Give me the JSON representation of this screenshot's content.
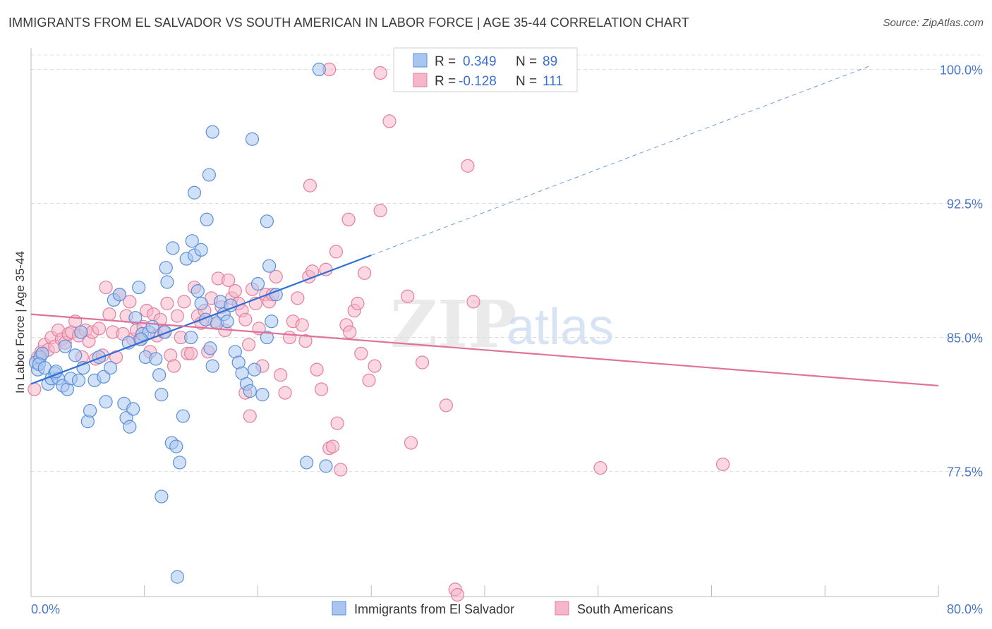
{
  "header": {
    "title": "IMMIGRANTS FROM EL SALVADOR VS SOUTH AMERICAN IN LABOR FORCE | AGE 35-44 CORRELATION CHART",
    "source": "Source: ZipAtlas.com"
  },
  "legend": {
    "row1": {
      "r_label": "R =",
      "r_value": "0.349",
      "n_label": "N =",
      "n_value": "89"
    },
    "row2": {
      "r_label": "R =",
      "r_value": "-0.128",
      "n_label": "N =",
      "n_value": "111"
    }
  },
  "bottom_legend": {
    "series1": "Immigrants from El Salvador",
    "series2": "South Americans"
  },
  "watermark": {
    "zip": "ZIP",
    "atlas": "atlas"
  },
  "colors": {
    "blue_fill": "#a9c6f0",
    "blue_stroke": "#5b8fd8",
    "blue_line": "#2f6fd6",
    "pink_fill": "#f5b6c9",
    "pink_stroke": "#e47fa0",
    "pink_line": "#e0729a",
    "tick_text": "#4a78c4",
    "grid": "#dcdcdc"
  },
  "chart_data": {
    "type": "scatter",
    "title": "IMMIGRANTS FROM EL SALVADOR VS SOUTH AMERICAN IN LABOR FORCE | AGE 35-44 CORRELATION CHART",
    "xlabel": "",
    "ylabel": "In Labor Force | Age 35-44",
    "xlim": [
      0,
      80
    ],
    "ylim": [
      70.5,
      101.2
    ],
    "x_tick_labels": [
      "0.0%",
      "80.0%"
    ],
    "y_ticks": [
      77.5,
      85.0,
      92.5,
      100.0
    ],
    "y_tick_labels": [
      "77.5%",
      "85.0%",
      "92.5%",
      "100.0%"
    ],
    "grid": "horizontal dashed",
    "legend_position": "top-center",
    "series": [
      {
        "name": "Immigrants from El Salvador",
        "color": "#5b8fd8",
        "stats": {
          "R": 0.349,
          "N": 89
        },
        "trend": {
          "x": [
            0,
            30
          ],
          "y": [
            82.4,
            89.6
          ],
          "extended_x": [
            30,
            74
          ],
          "extended_y": [
            89.6,
            100.2
          ]
        },
        "points": [
          [
            0.4,
            83.6
          ],
          [
            0.6,
            83.2
          ],
          [
            0.8,
            83.9
          ],
          [
            1.0,
            84.1
          ],
          [
            0.7,
            83.5
          ],
          [
            1.2,
            83.3
          ],
          [
            1.5,
            82.4
          ],
          [
            1.8,
            82.7
          ],
          [
            2.1,
            83.0
          ],
          [
            2.4,
            82.7
          ],
          [
            2.8,
            82.3
          ],
          [
            3.2,
            82.1
          ],
          [
            3.5,
            82.7
          ],
          [
            3.9,
            84.0
          ],
          [
            4.2,
            82.6
          ],
          [
            4.6,
            83.3
          ],
          [
            5.0,
            80.3
          ],
          [
            5.2,
            80.9
          ],
          [
            5.6,
            82.6
          ],
          [
            6.0,
            83.9
          ],
          [
            6.4,
            82.8
          ],
          [
            6.6,
            81.4
          ],
          [
            7.0,
            83.3
          ],
          [
            7.3,
            87.1
          ],
          [
            7.8,
            87.4
          ],
          [
            8.2,
            81.3
          ],
          [
            8.4,
            80.5
          ],
          [
            8.7,
            80.0
          ],
          [
            9.0,
            81.0
          ],
          [
            9.2,
            86.1
          ],
          [
            9.5,
            87.8
          ],
          [
            9.8,
            85.2
          ],
          [
            10.1,
            83.9
          ],
          [
            10.4,
            85.3
          ],
          [
            10.7,
            85.6
          ],
          [
            11.0,
            83.8
          ],
          [
            11.3,
            82.9
          ],
          [
            11.5,
            81.8
          ],
          [
            11.8,
            85.3
          ],
          [
            12.0,
            88.1
          ],
          [
            12.4,
            79.1
          ],
          [
            12.8,
            78.9
          ],
          [
            13.1,
            78.0
          ],
          [
            13.4,
            80.6
          ],
          [
            13.7,
            89.4
          ],
          [
            14.1,
            85.0
          ],
          [
            14.4,
            89.6
          ],
          [
            14.7,
            87.6
          ],
          [
            15.0,
            86.9
          ],
          [
            15.4,
            86.0
          ],
          [
            15.8,
            84.4
          ],
          [
            16.0,
            83.4
          ],
          [
            16.4,
            85.8
          ],
          [
            16.7,
            87.0
          ],
          [
            17.0,
            86.3
          ],
          [
            17.3,
            85.9
          ],
          [
            17.6,
            86.8
          ],
          [
            18.0,
            84.2
          ],
          [
            18.3,
            83.6
          ],
          [
            18.6,
            83.0
          ],
          [
            19.0,
            82.4
          ],
          [
            19.3,
            82.0
          ],
          [
            19.7,
            83.2
          ],
          [
            20.0,
            88.0
          ],
          [
            20.4,
            81.8
          ],
          [
            20.8,
            85.0
          ],
          [
            21.2,
            85.9
          ],
          [
            21.6,
            87.4
          ],
          [
            11.5,
            76.1
          ],
          [
            12.9,
            71.6
          ],
          [
            14.2,
            90.4
          ],
          [
            15.0,
            89.9
          ],
          [
            14.4,
            93.1
          ],
          [
            15.5,
            91.6
          ],
          [
            15.7,
            94.1
          ],
          [
            16.0,
            96.5
          ],
          [
            19.5,
            96.1
          ],
          [
            20.8,
            91.5
          ],
          [
            21.0,
            89.0
          ],
          [
            25.4,
            100.0
          ],
          [
            12.5,
            90.0
          ],
          [
            11.9,
            88.9
          ],
          [
            9.7,
            84.9
          ],
          [
            8.6,
            84.7
          ],
          [
            24.3,
            78.0
          ],
          [
            26.0,
            77.8
          ],
          [
            4.4,
            85.3
          ],
          [
            3.0,
            84.5
          ],
          [
            2.2,
            83.1
          ]
        ]
      },
      {
        "name": "South Americans",
        "color": "#e47fa0",
        "stats": {
          "R": -0.128,
          "N": 111
        },
        "trend": {
          "x": [
            0,
            80
          ],
          "y": [
            86.3,
            82.3
          ]
        },
        "points": [
          [
            0.3,
            82.1
          ],
          [
            0.6,
            83.9
          ],
          [
            0.9,
            84.2
          ],
          [
            1.2,
            84.6
          ],
          [
            1.5,
            84.3
          ],
          [
            1.8,
            85.0
          ],
          [
            2.1,
            84.5
          ],
          [
            2.4,
            85.4
          ],
          [
            2.7,
            84.9
          ],
          [
            3.0,
            84.7
          ],
          [
            3.3,
            85.2
          ],
          [
            3.6,
            85.3
          ],
          [
            3.9,
            85.9
          ],
          [
            4.2,
            85.1
          ],
          [
            4.5,
            83.9
          ],
          [
            4.8,
            85.4
          ],
          [
            5.1,
            84.8
          ],
          [
            5.4,
            85.3
          ],
          [
            5.7,
            83.8
          ],
          [
            6.0,
            85.5
          ],
          [
            6.3,
            84.0
          ],
          [
            6.6,
            87.8
          ],
          [
            6.9,
            86.3
          ],
          [
            7.2,
            85.3
          ],
          [
            7.5,
            83.9
          ],
          [
            7.8,
            87.4
          ],
          [
            8.1,
            85.2
          ],
          [
            8.4,
            86.2
          ],
          [
            8.7,
            87.0
          ],
          [
            9.0,
            84.9
          ],
          [
            9.3,
            85.4
          ],
          [
            9.6,
            84.9
          ],
          [
            9.9,
            85.6
          ],
          [
            10.2,
            86.5
          ],
          [
            10.5,
            84.2
          ],
          [
            10.8,
            86.3
          ],
          [
            11.1,
            85.1
          ],
          [
            11.4,
            86.0
          ],
          [
            11.7,
            85.3
          ],
          [
            12.0,
            86.9
          ],
          [
            12.3,
            84.0
          ],
          [
            12.6,
            83.4
          ],
          [
            12.9,
            86.2
          ],
          [
            13.2,
            85.0
          ],
          [
            13.5,
            87.0
          ],
          [
            13.8,
            84.1
          ],
          [
            14.1,
            84.1
          ],
          [
            14.4,
            87.8
          ],
          [
            14.7,
            86.2
          ],
          [
            15.0,
            85.8
          ],
          [
            15.3,
            86.5
          ],
          [
            15.6,
            84.2
          ],
          [
            15.9,
            87.2
          ],
          [
            16.2,
            85.9
          ],
          [
            16.5,
            88.3
          ],
          [
            16.8,
            86.7
          ],
          [
            17.1,
            85.4
          ],
          [
            17.4,
            88.2
          ],
          [
            17.7,
            87.2
          ],
          [
            18.0,
            87.6
          ],
          [
            18.3,
            86.9
          ],
          [
            18.6,
            86.5
          ],
          [
            18.9,
            86.0
          ],
          [
            19.2,
            84.6
          ],
          [
            19.5,
            87.7
          ],
          [
            19.8,
            86.9
          ],
          [
            20.1,
            85.5
          ],
          [
            20.4,
            83.4
          ],
          [
            20.7,
            87.4
          ],
          [
            21.0,
            87.0
          ],
          [
            21.3,
            87.4
          ],
          [
            21.6,
            88.4
          ],
          [
            22.0,
            82.9
          ],
          [
            22.4,
            81.9
          ],
          [
            22.8,
            85.0
          ],
          [
            23.1,
            85.9
          ],
          [
            23.5,
            87.2
          ],
          [
            23.9,
            85.7
          ],
          [
            24.2,
            84.8
          ],
          [
            24.5,
            88.4
          ],
          [
            24.8,
            88.7
          ],
          [
            25.2,
            83.2
          ],
          [
            25.6,
            82.1
          ],
          [
            26.0,
            88.8
          ],
          [
            26.3,
            78.8
          ],
          [
            26.6,
            78.9
          ],
          [
            27.0,
            80.2
          ],
          [
            27.3,
            77.6
          ],
          [
            27.8,
            85.7
          ],
          [
            28.1,
            85.3
          ],
          [
            28.5,
            86.5
          ],
          [
            28.8,
            86.9
          ],
          [
            29.1,
            84.1
          ],
          [
            29.4,
            88.6
          ],
          [
            29.8,
            82.6
          ],
          [
            30.3,
            83.4
          ],
          [
            30.8,
            92.1
          ],
          [
            31.6,
            97.1
          ],
          [
            33.2,
            87.3
          ],
          [
            33.5,
            79.1
          ],
          [
            34.5,
            83.6
          ],
          [
            36.6,
            81.2
          ],
          [
            37.4,
            70.9
          ],
          [
            37.6,
            70.6
          ],
          [
            38.5,
            94.6
          ],
          [
            39.0,
            87.0
          ],
          [
            50.2,
            77.7
          ],
          [
            61.0,
            77.9
          ],
          [
            18.9,
            81.9
          ],
          [
            19.3,
            80.6
          ],
          [
            24.6,
            93.5
          ],
          [
            28.0,
            91.6
          ],
          [
            26.9,
            89.8
          ],
          [
            30.8,
            99.8
          ],
          [
            26.3,
            100.0
          ]
        ]
      }
    ]
  }
}
